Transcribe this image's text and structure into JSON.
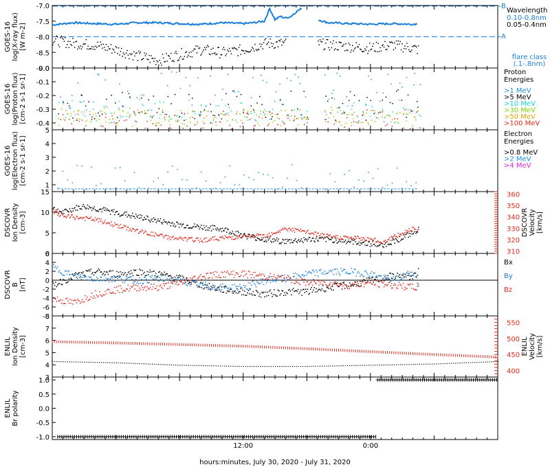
{
  "xaxis": {
    "label": "hours:minutes, July 30, 2020 - July 31, 2020",
    "ticks": [
      "12:00",
      "0:00"
    ]
  },
  "colors": {
    "xray_long": "#1a7fdc",
    "xray_short": "#000000",
    "p1": "#1f8fe0",
    "p5": "#000000",
    "p10": "#18d6d6",
    "p30": "#7ad600",
    "p50": "#e0a800",
    "p100": "#e0281c",
    "e08": "#000000",
    "e2": "#1f8fe0",
    "e4": "#e020e0",
    "black": "#000000",
    "red": "#e0281c",
    "blue": "#1a7fdc"
  },
  "panels": {
    "xray": {
      "ylabel": [
        "GOES-16",
        "log(X-ray flux)",
        "[W m-2]"
      ],
      "yticks": [
        "-7.0",
        "-7.5",
        "-8.0",
        "-8.5",
        "-9.0"
      ],
      "threshold_B": "B",
      "threshold_A": "A",
      "legend_title": "Wavelength",
      "legend_long": "0.10-0.8nm",
      "legend_short": "0.05-0.4nm",
      "flare_note": [
        "flare class",
        "(.1-.8nm)"
      ]
    },
    "proton": {
      "ylabel": [
        "GOES-16",
        "log(Proton flux)",
        "[cm-2 s-1 sr-1]"
      ],
      "yticks": [
        "0.0",
        "-0.1",
        "-0.2",
        "-0.3",
        "-0.4"
      ],
      "legend_title": [
        "Proton",
        "Energies"
      ],
      "legend": [
        ">1 MeV",
        ">5 MeV",
        ">10 MeV",
        ">30 MeV",
        ">50 MeV",
        ">100 MeV"
      ]
    },
    "electron": {
      "ylabel": [
        "GOES-16",
        "log(Electron flux)",
        "[cm-2 s-1 sr-1]"
      ],
      "yticks": [
        "5",
        "4",
        "3",
        "2",
        "1"
      ],
      "legend_title": [
        "Electron",
        "Energies"
      ],
      "legend": [
        ">0.8 MeV",
        ">2 MeV",
        ">4 MeV"
      ]
    },
    "dscovr_density": {
      "ylabel": [
        "DSCOVR",
        "Ion Density",
        "[cm-3]"
      ],
      "yticks": [
        "15",
        "10",
        "5",
        "0"
      ],
      "y2label": [
        "DSCOVR",
        "Velocity",
        "[km/s]"
      ],
      "y2ticks": [
        "360",
        "350",
        "340",
        "330",
        "320",
        "310"
      ]
    },
    "dscovr_b": {
      "ylabel": [
        "DSCOVR",
        "B",
        "[nT]"
      ],
      "yticks": [
        "6",
        "4",
        "2",
        "0",
        "-2",
        "-4",
        "-6",
        "-8"
      ],
      "legend": [
        "Bx",
        "By",
        "Bz"
      ]
    },
    "enlil_density": {
      "ylabel": [
        "ENLIL",
        "Ion Density",
        "[cm-3]"
      ],
      "yticks": [
        "8",
        "7",
        "6",
        "5",
        "4",
        "3"
      ],
      "y2label": [
        "ENLIL",
        "Velocity",
        "[km/s]"
      ],
      "y2ticks": [
        "550",
        "500",
        "450",
        "400"
      ]
    },
    "enlil_polarity": {
      "ylabel": [
        "ENLIL",
        "Br polarity"
      ],
      "yticks": [
        "1.0",
        "0.5",
        "0.0",
        "-0.5",
        "-1.0"
      ]
    }
  },
  "chart_data": [
    {
      "type": "line",
      "title": "",
      "xlabel": "hours:minutes, July 30, 2020 - July 31, 2020",
      "ylabel": "log(X-ray flux) [W m-2]",
      "x_hours": [
        -6,
        12,
        30
      ],
      "ylim": [
        -9.0,
        -7.0
      ],
      "thresholds": {
        "A": -8.0,
        "B": -7.0
      },
      "series": [
        {
          "name": "0.10-0.8nm",
          "x": [
            -6,
            -4,
            -2,
            0,
            2,
            4,
            6,
            8,
            10,
            12,
            13,
            14,
            14.5,
            15,
            15.5,
            16,
            16.5,
            17,
            17.5,
            18,
            19,
            20,
            22,
            24,
            26,
            28,
            28.5
          ],
          "y": [
            -7.62,
            -7.55,
            -7.58,
            -7.6,
            -7.55,
            -7.55,
            -7.58,
            -7.6,
            -7.55,
            -7.58,
            -7.55,
            -7.5,
            -7.1,
            -7.45,
            -7.35,
            -7.4,
            -7.35,
            -7.2,
            -7.1,
            null,
            -7.45,
            -7.55,
            -7.58,
            -7.6,
            -7.58,
            -7.6,
            -7.58
          ]
        },
        {
          "name": "0.05-0.4nm",
          "x": [
            -6,
            -4,
            -2,
            0,
            2,
            4,
            6,
            8,
            10,
            12,
            14,
            16,
            18,
            19,
            20,
            22,
            24,
            26,
            28,
            28.5
          ],
          "y": [
            -8.1,
            -8.2,
            -8.25,
            -8.4,
            -8.6,
            -8.75,
            -8.55,
            -8.4,
            -8.5,
            -8.4,
            -8.2,
            -8.2,
            null,
            -8.2,
            -8.25,
            -8.3,
            -8.35,
            -8.25,
            -8.35,
            -8.4
          ]
        }
      ]
    },
    {
      "type": "scatter",
      "ylabel": "log(Proton flux)",
      "ylim": [
        -0.45,
        0.0
      ],
      "x_range_hours": [
        -6,
        28.5
      ],
      "series": [
        {
          "name": ">1 MeV",
          "y_range": [
            -0.4,
            -0.02
          ]
        },
        {
          "name": ">5 MeV",
          "y_range": [
            -0.38,
            -0.15
          ]
        },
        {
          "name": ">10 MeV",
          "y_range": [
            -0.38,
            -0.22
          ]
        },
        {
          "name": ">30 MeV",
          "y_range": [
            -0.4,
            -0.28
          ]
        },
        {
          "name": ">50 MeV",
          "y_range": [
            -0.42,
            -0.3
          ]
        },
        {
          "name": ">100 MeV",
          "y_range": [
            -0.44,
            -0.3
          ]
        }
      ]
    },
    {
      "type": "scatter",
      "ylabel": "log(Electron flux)",
      "ylim": [
        0.5,
        5.0
      ],
      "reference_line": 5.0,
      "series": [
        {
          "name": ">0.8 MeV",
          "y": null
        },
        {
          "name": ">2 MeV",
          "y_range": [
            0.7,
            2.5
          ],
          "baseline": 0.7
        },
        {
          "name": ">4 MeV",
          "y": null
        }
      ]
    },
    {
      "type": "line",
      "ylabel": "Ion Density [cm-3]",
      "ylim": [
        0,
        15
      ],
      "y2label": "Velocity [km/s]",
      "y2lim": [
        308,
        362
      ],
      "series": [
        {
          "name": "Ion Density",
          "x": [
            -6,
            -5,
            -4,
            -3,
            -2,
            0,
            2,
            4,
            6,
            8,
            10,
            12,
            14,
            16,
            18,
            20,
            22,
            24,
            25,
            26,
            27,
            28,
            28.5
          ],
          "y": [
            11,
            10,
            11,
            11.5,
            11,
            10,
            9,
            8,
            7,
            6.5,
            6,
            4.5,
            3.5,
            3,
            3.5,
            3.5,
            3,
            2.5,
            2,
            3,
            4,
            5,
            6
          ]
        },
        {
          "name": "Velocity",
          "axis": "right",
          "x": [
            -6,
            -5,
            -4,
            -3,
            -2,
            0,
            2,
            4,
            6,
            8,
            10,
            12,
            14,
            16,
            18,
            20,
            22,
            24,
            25,
            26,
            27,
            28,
            28.5
          ],
          "y": [
            345,
            341,
            340,
            339,
            338,
            333,
            328,
            324,
            321,
            320,
            322,
            323,
            324,
            330,
            327,
            323,
            322,
            321,
            318,
            322,
            326,
            331,
            328
          ]
        }
      ]
    },
    {
      "type": "line",
      "ylabel": "B [nT]",
      "ylim": [
        -8,
        6
      ],
      "series": [
        {
          "name": "Bx",
          "x": [
            -6,
            -4,
            -2,
            0,
            2,
            4,
            6,
            8,
            10,
            12,
            14,
            16,
            18,
            20,
            22,
            24,
            26,
            28,
            28.5
          ],
          "y": [
            -1,
            1,
            2,
            1.5,
            2,
            1.5,
            0.5,
            -1,
            -2,
            -2.5,
            -3,
            -2.5,
            -2.5,
            -1.5,
            -1,
            0,
            1,
            1,
            2
          ]
        },
        {
          "name": "By",
          "x": [
            -6,
            -4,
            -2,
            0,
            2,
            4,
            6,
            8,
            10,
            12,
            14,
            16,
            18,
            20,
            22,
            24,
            26,
            28,
            28.5
          ],
          "y": [
            3,
            1,
            0.5,
            0.5,
            0,
            0.5,
            0,
            -1,
            -1.5,
            -1.5,
            0,
            0.5,
            1.5,
            2,
            2,
            1.5,
            0,
            2,
            -1
          ]
        },
        {
          "name": "Bz",
          "x": [
            -6,
            -4,
            -2,
            0,
            2,
            4,
            6,
            8,
            10,
            12,
            14,
            16,
            18,
            20,
            22,
            24,
            26,
            28,
            28.5
          ],
          "y": [
            -4,
            -5,
            -3,
            -2,
            -1.5,
            -1.5,
            -0.5,
            1,
            1.5,
            1.5,
            1,
            0.5,
            -0.5,
            -0.5,
            -1,
            -0.5,
            -1,
            -1.5,
            -1.5
          ]
        }
      ]
    },
    {
      "type": "line",
      "ylabel": "Ion Density [cm-3]",
      "ylim": [
        3,
        8
      ],
      "y2label": "Velocity [km/s]",
      "y2lim": [
        380,
        570
      ],
      "series": [
        {
          "name": "Velocity",
          "axis": "right",
          "x": [
            -6,
            0,
            6,
            12,
            18,
            24,
            30,
            36
          ],
          "y": [
            490,
            486,
            481,
            476,
            468,
            459,
            450,
            442
          ]
        },
        {
          "name": "Ion Density",
          "x": [
            -6,
            0,
            6,
            12,
            18,
            24,
            30,
            36
          ],
          "y": [
            4.3,
            4.2,
            4.0,
            3.9,
            3.9,
            4.0,
            4.1,
            4.3
          ]
        }
      ]
    },
    {
      "type": "line",
      "ylabel": "Br polarity",
      "ylim": [
        -1.1,
        1.1
      ],
      "series": [
        {
          "name": "Br polarity",
          "x": [
            -6,
            24.5,
            24.5,
            36
          ],
          "y": [
            -1.0,
            -1.0,
            1.0,
            1.0
          ]
        }
      ]
    }
  ]
}
